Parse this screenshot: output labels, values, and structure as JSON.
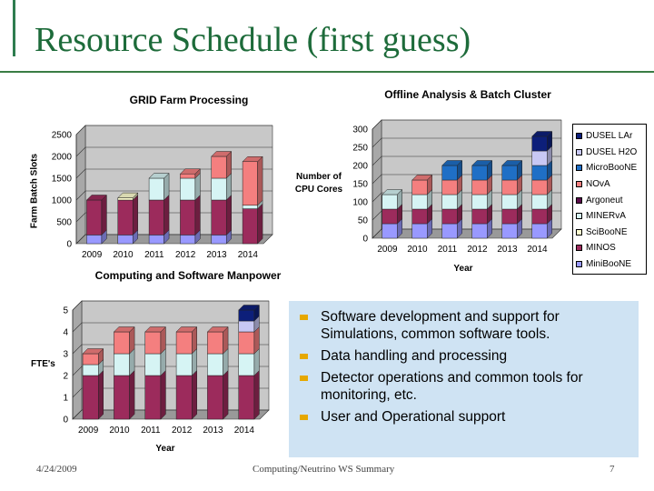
{
  "slide": {
    "title": "Resource Schedule (first guess)",
    "footer_date": "4/24/2009",
    "footer_center": "Computing/Neutrino WS Summary",
    "page_number": "7"
  },
  "bullets": [
    "Software development and support for Simulations, common software tools.",
    "Data handling and processing",
    "Detector operations and common tools for monitoring, etc.",
    "User and Operational support"
  ],
  "colors": {
    "title": "#1d6b3a",
    "accent_rule": "#3a7d44",
    "bullet": "#e6a800",
    "bullet_panel": "#cfe3f3"
  },
  "legend": [
    {
      "name": "DUSEL LAr",
      "color": "#0d1f7a"
    },
    {
      "name": "DUSEL H2O",
      "color": "#c8c8f4"
    },
    {
      "name": "MicroBooNE",
      "color": "#1f6fc6"
    },
    {
      "name": "NOvA",
      "color": "#f47f7f"
    },
    {
      "name": "Argoneut",
      "color": "#5a0c4a"
    },
    {
      "name": "MINERvA",
      "color": "#d6f4f4"
    },
    {
      "name": "SciBooNE",
      "color": "#ffffd0"
    },
    {
      "name": "MINOS",
      "color": "#9c2b5c"
    },
    {
      "name": "MiniBooNE",
      "color": "#9999ff"
    }
  ],
  "chart_data": [
    {
      "type": "bar",
      "stacked": true,
      "title": "GRID Farm Processing",
      "xlabel": "",
      "ylabel": "Farm Batch Slots",
      "ylim": [
        0,
        2500
      ],
      "yticks": [
        0,
        500,
        1000,
        1500,
        2000,
        2500
      ],
      "categories": [
        "2009",
        "2010",
        "2011",
        "2012",
        "2013",
        "2014"
      ],
      "series": [
        {
          "name": "MiniBooNE",
          "values": [
            200,
            200,
            200,
            200,
            200,
            0
          ]
        },
        {
          "name": "MINOS",
          "values": [
            800,
            800,
            800,
            800,
            800,
            800
          ]
        },
        {
          "name": "SciBooNE",
          "values": [
            0,
            50,
            0,
            0,
            0,
            0
          ]
        },
        {
          "name": "MINERvA",
          "values": [
            0,
            0,
            500,
            500,
            500,
            80
          ]
        },
        {
          "name": "NOvA",
          "values": [
            0,
            0,
            0,
            100,
            500,
            1000
          ]
        }
      ]
    },
    {
      "type": "bar",
      "stacked": true,
      "title": "Offline Analysis & Batch Cluster",
      "xlabel": "Year",
      "ylabel": "Number of CPU Cores",
      "ylim": [
        0,
        300
      ],
      "yticks": [
        0,
        50,
        100,
        150,
        200,
        250,
        300
      ],
      "categories": [
        "2009",
        "2010",
        "2011",
        "2012",
        "2013",
        "2014"
      ],
      "series": [
        {
          "name": "MiniBooNE",
          "values": [
            40,
            40,
            40,
            40,
            40,
            40
          ]
        },
        {
          "name": "MINOS",
          "values": [
            40,
            40,
            40,
            40,
            40,
            40
          ]
        },
        {
          "name": "MINERvA",
          "values": [
            40,
            40,
            40,
            40,
            40,
            40
          ]
        },
        {
          "name": "NOvA",
          "values": [
            0,
            40,
            40,
            40,
            40,
            40
          ]
        },
        {
          "name": "MicroBooNE",
          "values": [
            0,
            0,
            40,
            40,
            40,
            40
          ]
        },
        {
          "name": "DUSEL H2O",
          "values": [
            0,
            0,
            0,
            0,
            0,
            40
          ]
        },
        {
          "name": "DUSEL LAr",
          "values": [
            0,
            0,
            0,
            0,
            0,
            40
          ]
        }
      ]
    },
    {
      "type": "bar",
      "stacked": true,
      "title": "Computing and Software Manpower",
      "xlabel": "Year",
      "ylabel": "FTE's",
      "ylim": [
        0,
        5
      ],
      "yticks": [
        0,
        1,
        2,
        3,
        4,
        5
      ],
      "categories": [
        "2009",
        "2010",
        "2011",
        "2012",
        "2013",
        "2014"
      ],
      "series": [
        {
          "name": "MINOS",
          "values": [
            2,
            2,
            2,
            2,
            2,
            2
          ]
        },
        {
          "name": "MINERvA",
          "values": [
            0.5,
            1,
            1,
            1,
            1,
            1
          ]
        },
        {
          "name": "NOvA",
          "values": [
            0.5,
            1,
            1,
            1,
            1,
            1
          ]
        },
        {
          "name": "DUSEL H2O",
          "values": [
            0,
            0,
            0,
            0,
            0,
            0.5
          ]
        },
        {
          "name": "DUSEL LAr",
          "values": [
            0,
            0,
            0,
            0,
            0,
            0.5
          ]
        }
      ]
    }
  ]
}
